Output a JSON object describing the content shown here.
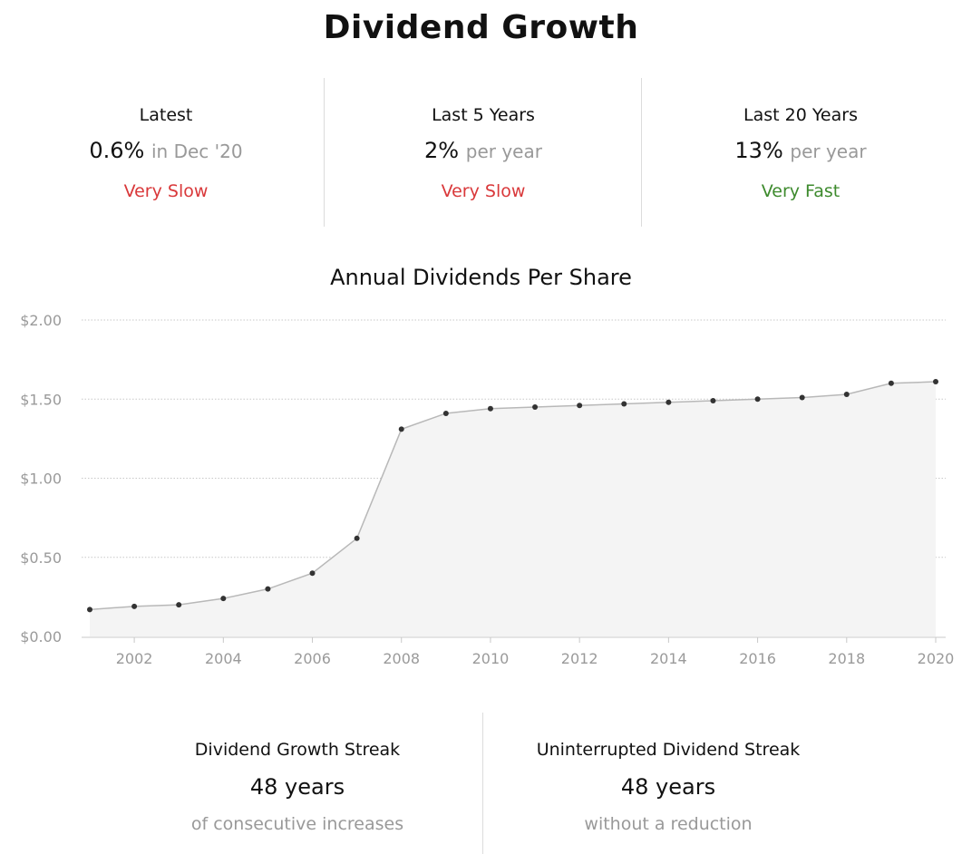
{
  "title": "Dividend Growth",
  "stats": [
    {
      "label": "Latest",
      "value": "0.6%",
      "unit": "in Dec '20",
      "rating": "Very Slow",
      "rating_color": "#d9383a"
    },
    {
      "label": "Last 5 Years",
      "value": "2%",
      "unit": "per year",
      "rating": "Very Slow",
      "rating_color": "#d9383a"
    },
    {
      "label": "Last 20 Years",
      "value": "13%",
      "unit": "per year",
      "rating": "Very Fast",
      "rating_color": "#3d8a2d"
    }
  ],
  "chart_data": {
    "type": "area",
    "title": "Annual Dividends Per Share",
    "x": [
      2001,
      2002,
      2003,
      2004,
      2005,
      2006,
      2007,
      2008,
      2009,
      2010,
      2011,
      2012,
      2013,
      2014,
      2015,
      2016,
      2017,
      2018,
      2019,
      2020
    ],
    "values": [
      0.17,
      0.19,
      0.2,
      0.24,
      0.3,
      0.4,
      0.62,
      1.31,
      1.41,
      1.44,
      1.45,
      1.46,
      1.47,
      1.48,
      1.49,
      1.5,
      1.51,
      1.53,
      1.6,
      1.61
    ],
    "xticks": [
      "2002",
      "2004",
      "2006",
      "2008",
      "2010",
      "2012",
      "2014",
      "2016",
      "2018",
      "2020"
    ],
    "yticks": [
      "$0.00",
      "$0.50",
      "$1.00",
      "$1.50",
      "$2.00"
    ],
    "ylim": [
      0,
      2.0
    ],
    "xlim": [
      2000.8,
      2020.2
    ],
    "grid": true,
    "line_color": "#b8b8b8",
    "fill_color": "#f4f4f4",
    "point_color": "#333333"
  },
  "streaks": [
    {
      "label": "Dividend Growth Streak",
      "value": "48 years",
      "sub": "of consecutive increases"
    },
    {
      "label": "Uninterrupted Dividend Streak",
      "value": "48 years",
      "sub": "without a reduction"
    }
  ]
}
